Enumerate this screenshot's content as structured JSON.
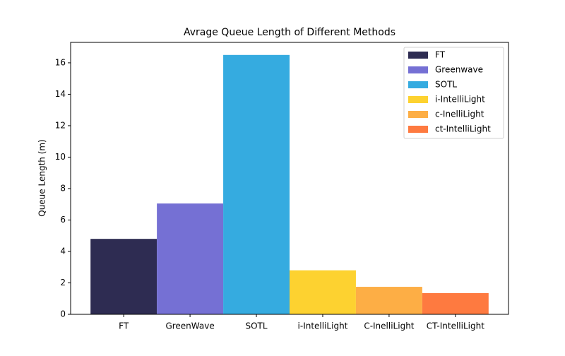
{
  "chart_data": {
    "type": "bar",
    "title": "Avrage Queue Length of Different Methods",
    "ylabel": "Queue Length (m)",
    "categories": [
      "FT",
      "GreenWave",
      "SOTL",
      "i-IntelliLight",
      "C-InelliLight",
      "CT-IntelliLight"
    ],
    "values": [
      4.8,
      7.05,
      16.5,
      2.8,
      1.75,
      1.35
    ],
    "colors": [
      "#2e2c52",
      "#7570d4",
      "#35abe0",
      "#fdd230",
      "#fdae45",
      "#fe7a40"
    ],
    "legend_labels": [
      "FT",
      "Greenwave",
      "SOTL",
      "i-IntelliLight",
      "c-InelliLight",
      "ct-IntelliLight"
    ],
    "legend": "upper right",
    "ylim": [
      0,
      17.3
    ],
    "yticks": [
      0,
      2,
      4,
      6,
      8,
      10,
      12,
      14,
      16
    ],
    "grid": false
  }
}
